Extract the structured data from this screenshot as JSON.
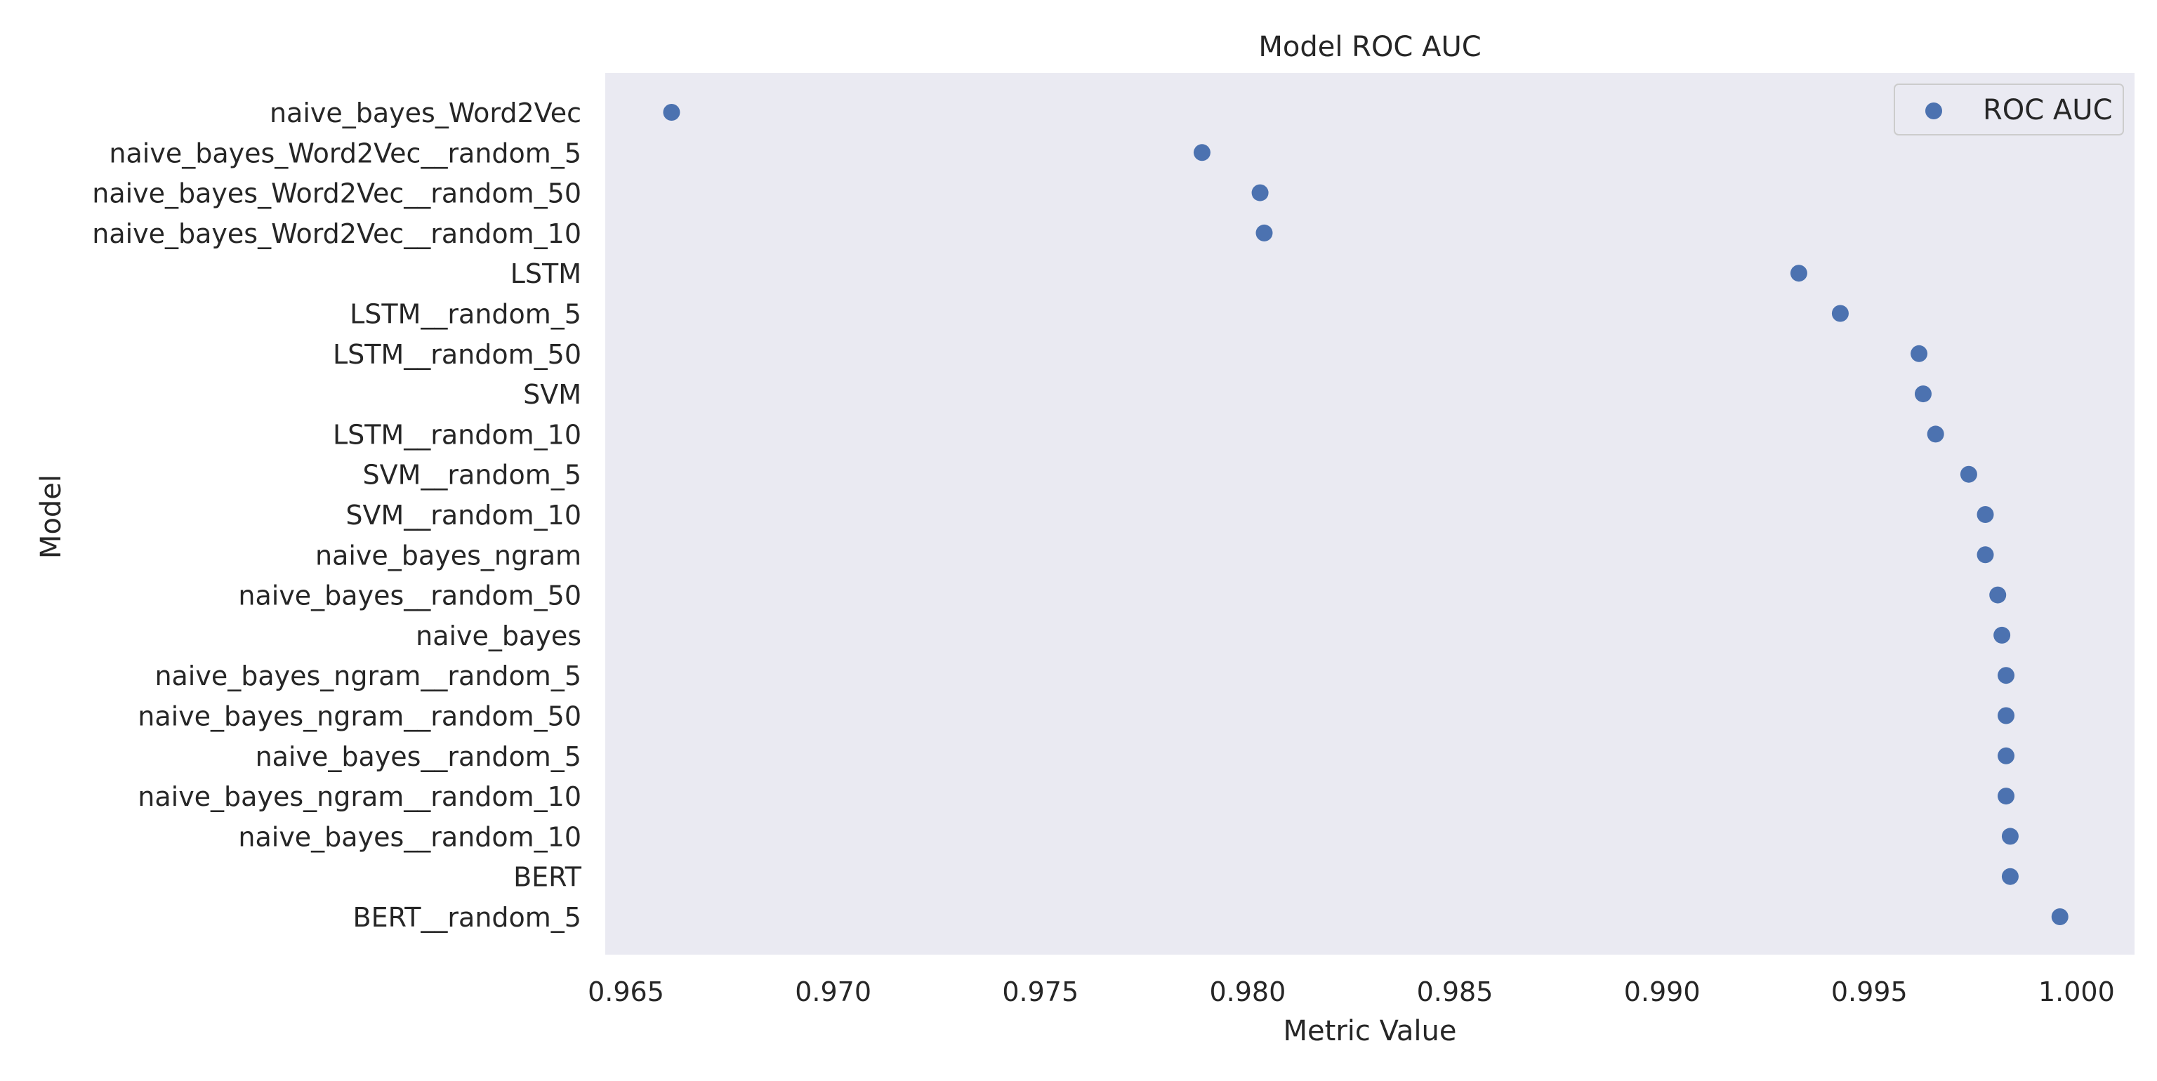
{
  "chart_data": {
    "type": "scatter",
    "title": "Model ROC AUC",
    "xlabel": "Metric Value",
    "ylabel": "Model",
    "xlim": [
      0.9645,
      1.0014
    ],
    "xticks": [
      "0.965",
      "0.970",
      "0.975",
      "0.980",
      "0.985",
      "0.990",
      "0.995",
      "1.000"
    ],
    "grid": false,
    "legend_position": "top-right",
    "colors": {
      "background": "#eaeaf2",
      "marker": "#4c72b0",
      "text": "#262626"
    },
    "series": [
      {
        "name": "ROC AUC",
        "points": [
          {
            "label": "naive_bayes_Word2Vec",
            "value": 0.9661
          },
          {
            "label": "naive_bayes_Word2Vec__random_5",
            "value": 0.9789
          },
          {
            "label": "naive_bayes_Word2Vec__random_50",
            "value": 0.9803
          },
          {
            "label": "naive_bayes_Word2Vec__random_10",
            "value": 0.9804
          },
          {
            "label": "LSTM",
            "value": 0.9933
          },
          {
            "label": "LSTM__random_5",
            "value": 0.9943
          },
          {
            "label": "LSTM__random_50",
            "value": 0.9962
          },
          {
            "label": "SVM",
            "value": 0.9963
          },
          {
            "label": "LSTM__random_10",
            "value": 0.9966
          },
          {
            "label": "SVM__random_5",
            "value": 0.9974
          },
          {
            "label": "SVM__random_10",
            "value": 0.9978
          },
          {
            "label": "naive_bayes_ngram",
            "value": 0.9978
          },
          {
            "label": "naive_bayes__random_50",
            "value": 0.9981
          },
          {
            "label": "naive_bayes",
            "value": 0.9982
          },
          {
            "label": "naive_bayes_ngram__random_5",
            "value": 0.9983
          },
          {
            "label": "naive_bayes_ngram__random_50",
            "value": 0.9983
          },
          {
            "label": "naive_bayes__random_5",
            "value": 0.9983
          },
          {
            "label": "naive_bayes_ngram__random_10",
            "value": 0.9983
          },
          {
            "label": "naive_bayes__random_10",
            "value": 0.9984
          },
          {
            "label": "BERT",
            "value": 0.9984
          },
          {
            "label": "BERT__random_5",
            "value": 0.9996
          }
        ]
      }
    ]
  }
}
